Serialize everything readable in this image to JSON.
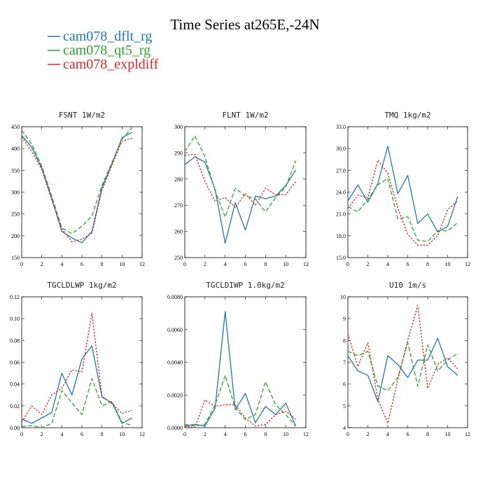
{
  "figure_title": "Time Series at265E,-24N",
  "legend": [
    {
      "name": "cam078_dflt_rg",
      "color": "#1f77b4",
      "dash": "solid"
    },
    {
      "name": "cam078_qt5_rg",
      "color": "#2ca02c",
      "dash": "dashed"
    },
    {
      "name": "cam078_expldiff",
      "color": "#d62728",
      "dash": "dotted"
    }
  ],
  "chart_data": [
    {
      "type": "line",
      "title": "FSNT  1W/m2",
      "x": [
        0,
        1,
        2,
        3,
        4,
        5,
        6,
        7,
        8,
        9,
        10,
        11
      ],
      "xlim": [
        0,
        12
      ],
      "xticks": [
        "0",
        "2",
        "4",
        "6",
        "8",
        "10",
        "12"
      ],
      "ylim": [
        150,
        450
      ],
      "yticks": [
        "150",
        "200",
        "250",
        "300",
        "350",
        "400",
        "450"
      ],
      "series": [
        {
          "name": "cam078_dflt_rg",
          "values": [
            430,
            403,
            355,
            285,
            210,
            195,
            184,
            210,
            310,
            365,
            425,
            437
          ]
        },
        {
          "name": "cam078_qt5_rg",
          "values": [
            442,
            410,
            360,
            290,
            218,
            205,
            222,
            245,
            315,
            368,
            422,
            448
          ]
        },
        {
          "name": "cam078_expldiff",
          "values": [
            427,
            393,
            352,
            282,
            216,
            186,
            192,
            206,
            305,
            362,
            417,
            424
          ]
        }
      ]
    },
    {
      "type": "line",
      "title": "FLNT  1W/m2",
      "x": [
        0,
        1,
        2,
        3,
        4,
        5,
        6,
        7,
        8,
        9,
        10,
        11
      ],
      "xlim": [
        0,
        12
      ],
      "xticks": [
        "0",
        "2",
        "4",
        "6",
        "8",
        "10",
        "12"
      ],
      "ylim": [
        250,
        300
      ],
      "yticks": [
        "250",
        "260",
        "270",
        "280",
        "290",
        "300"
      ],
      "series": [
        {
          "name": "cam078_dflt_rg",
          "values": [
            285.5,
            288.5,
            286.5,
            276,
            255.5,
            271,
            260.5,
            273.5,
            272.5,
            273.5,
            277.5,
            283.5
          ]
        },
        {
          "name": "cam078_qt5_rg",
          "values": [
            290.5,
            296.5,
            288.5,
            275.5,
            265.5,
            276.5,
            273.5,
            272.5,
            267.5,
            273,
            277,
            287
          ]
        },
        {
          "name": "cam078_expldiff",
          "values": [
            289,
            289.5,
            279,
            271.5,
            273,
            269,
            274.5,
            270,
            276.5,
            274,
            274,
            279
          ]
        }
      ]
    },
    {
      "type": "line",
      "title": "TMQ  1kg/m2",
      "x": [
        0,
        1,
        2,
        3,
        4,
        5,
        6,
        7,
        8,
        9,
        10,
        11
      ],
      "xlim": [
        0,
        12
      ],
      "xticks": [
        "0",
        "2",
        "4",
        "6",
        "8",
        "10",
        "12"
      ],
      "ylim": [
        15,
        33
      ],
      "yticks": [
        "15.0",
        "18.0",
        "21.0",
        "24.0",
        "27.0",
        "30.0",
        "33.0"
      ],
      "series": [
        {
          "name": "cam078_dflt_rg",
          "values": [
            22.8,
            25.0,
            22.6,
            25.2,
            30.3,
            23.8,
            26.3,
            19.7,
            21.0,
            18.5,
            19.3,
            23.4
          ]
        },
        {
          "name": "cam078_qt5_rg",
          "values": [
            22.0,
            21.3,
            23.0,
            25.0,
            25.9,
            20.3,
            20.6,
            17.4,
            17.2,
            18.7,
            18.7,
            19.8
          ]
        },
        {
          "name": "cam078_expldiff",
          "values": [
            21.8,
            23.6,
            23.2,
            28.4,
            26.6,
            21.8,
            18.2,
            16.7,
            16.7,
            18.0,
            21.6,
            22.8
          ]
        }
      ]
    },
    {
      "type": "line",
      "title": "TGCLDLWP  1kg/m2",
      "x": [
        0,
        1,
        2,
        3,
        4,
        5,
        6,
        7,
        8,
        9,
        10,
        11
      ],
      "xlim": [
        0,
        12
      ],
      "xticks": [
        "0",
        "2",
        "4",
        "6",
        "8",
        "10",
        "12"
      ],
      "ylim": [
        0,
        0.12
      ],
      "yticks": [
        "0.00",
        "0.02",
        "0.04",
        "0.06",
        "0.08",
        "0.10",
        "0.12"
      ],
      "series": [
        {
          "name": "cam078_dflt_rg",
          "values": [
            0.008,
            0.004,
            0.009,
            0.014,
            0.05,
            0.03,
            0.063,
            0.075,
            0.028,
            0.023,
            0.004,
            0.009
          ]
        },
        {
          "name": "cam078_qt5_rg",
          "values": [
            0.001,
            0.002,
            0.0,
            0.004,
            0.034,
            0.023,
            0.012,
            0.045,
            0.02,
            0.024,
            0.005,
            0.002
          ]
        },
        {
          "name": "cam078_expldiff",
          "values": [
            0.005,
            0.02,
            0.012,
            0.03,
            0.036,
            0.053,
            0.051,
            0.105,
            0.029,
            0.022,
            0.013,
            0.016
          ]
        }
      ]
    },
    {
      "type": "line",
      "title": "TGCLDIWP  1.0kg/m2",
      "x": [
        0,
        1,
        2,
        3,
        4,
        5,
        6,
        7,
        8,
        9,
        10,
        11
      ],
      "xlim": [
        0,
        12
      ],
      "xticks": [
        "0",
        "2",
        "4",
        "6",
        "8",
        "10",
        "12"
      ],
      "ylim": [
        0,
        0.008
      ],
      "yticks": [
        "0.0000",
        "0.0020",
        "0.0040",
        "0.0060",
        "0.0080"
      ],
      "series": [
        {
          "name": "cam078_dflt_rg",
          "values": [
            0.0001,
            0.0002,
            0.0001,
            0.0012,
            0.0071,
            0.0011,
            0.0021,
            0.0003,
            0.0013,
            0.0008,
            0.0015,
            0.0001
          ]
        },
        {
          "name": "cam078_qt5_rg",
          "values": [
            0.0002,
            0.0001,
            0.0002,
            0.0014,
            0.0032,
            0.0012,
            0.0005,
            0.0008,
            0.0028,
            0.0014,
            0.0008,
            0.0001
          ]
        },
        {
          "name": "cam078_expldiff",
          "values": [
            0.0001,
            0.0,
            0.0017,
            0.0013,
            0.0014,
            0.0014,
            0.0006,
            0.0001,
            0.0002,
            0.0008,
            0.001,
            0.0005
          ]
        }
      ]
    },
    {
      "type": "line",
      "title": "U10  1m/s",
      "x": [
        0,
        1,
        2,
        3,
        4,
        5,
        6,
        7,
        8,
        9,
        10,
        11
      ],
      "xlim": [
        0,
        12
      ],
      "xticks": [
        "0",
        "2",
        "4",
        "6",
        "8",
        "10",
        "12"
      ],
      "ylim": [
        4,
        10
      ],
      "yticks": [
        "4",
        "5",
        "6",
        "7",
        "8",
        "9",
        "10"
      ],
      "series": [
        {
          "name": "cam078_dflt_rg",
          "values": [
            7.3,
            6.6,
            6.4,
            5.2,
            7.3,
            6.9,
            6.3,
            7.1,
            7.1,
            8.1,
            6.8,
            6.4
          ]
        },
        {
          "name": "cam078_qt5_rg",
          "values": [
            7.5,
            7.3,
            7.5,
            5.9,
            5.7,
            6.3,
            7.9,
            5.9,
            7.8,
            6.6,
            7.1,
            7.4
          ]
        },
        {
          "name": "cam078_expldiff",
          "values": [
            8.3,
            6.8,
            7.9,
            5.3,
            4.2,
            6.2,
            8.0,
            9.6,
            5.8,
            6.9,
            7.2,
            6.7
          ]
        }
      ]
    }
  ]
}
